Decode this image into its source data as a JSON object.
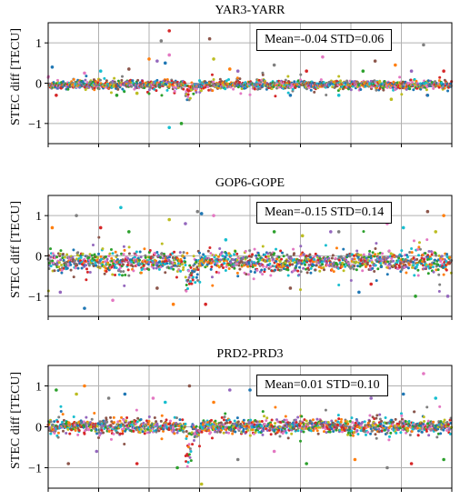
{
  "chart_data": [
    {
      "type": "scatter",
      "title": "YAR3-YARR",
      "ylabel": "STEC diff [TECU]",
      "xlabel": "",
      "ylim": [
        -1.5,
        1.5
      ],
      "yticks": [
        1,
        0,
        -1
      ],
      "grid": true,
      "stats": "Mean=-0.04 STD=0.06",
      "mean": -0.04,
      "std": 0.06,
      "stats_position": "top-right",
      "outliers": [
        {
          "x": 0.01,
          "y": 0.4
        },
        {
          "x": 0.02,
          "y": -0.3
        },
        {
          "x": 0.09,
          "y": 0.25
        },
        {
          "x": 0.13,
          "y": 0.3
        },
        {
          "x": 0.17,
          "y": -0.3
        },
        {
          "x": 0.2,
          "y": 0.35
        },
        {
          "x": 0.22,
          "y": -0.25
        },
        {
          "x": 0.25,
          "y": 0.6
        },
        {
          "x": 0.27,
          "y": 0.55
        },
        {
          "x": 0.28,
          "y": 1.05
        },
        {
          "x": 0.29,
          "y": 0.5
        },
        {
          "x": 0.3,
          "y": 1.3
        },
        {
          "x": 0.3,
          "y": 0.7
        },
        {
          "x": 0.3,
          "y": -1.1
        },
        {
          "x": 0.33,
          "y": -1.0
        },
        {
          "x": 0.4,
          "y": 1.1
        },
        {
          "x": 0.41,
          "y": 0.6
        },
        {
          "x": 0.45,
          "y": 0.35
        },
        {
          "x": 0.47,
          "y": 0.3
        },
        {
          "x": 0.56,
          "y": 0.45
        },
        {
          "x": 0.6,
          "y": -0.3
        },
        {
          "x": 0.64,
          "y": 0.3
        },
        {
          "x": 0.68,
          "y": 0.65
        },
        {
          "x": 0.72,
          "y": -0.3
        },
        {
          "x": 0.78,
          "y": 0.3
        },
        {
          "x": 0.81,
          "y": 0.55
        },
        {
          "x": 0.85,
          "y": -0.4
        },
        {
          "x": 0.86,
          "y": 0.45
        },
        {
          "x": 0.9,
          "y": 0.3
        },
        {
          "x": 0.93,
          "y": 0.95
        },
        {
          "x": 0.94,
          "y": -0.3
        },
        {
          "x": 0.98,
          "y": 0.3
        }
      ]
    },
    {
      "type": "scatter",
      "title": "GOP6-GOPE",
      "ylabel": "STEC diff [TECU]",
      "xlabel": "",
      "ylim": [
        -1.5,
        1.5
      ],
      "yticks": [
        1,
        0,
        -1
      ],
      "grid": true,
      "stats": "Mean=-0.15 STD=0.14",
      "mean": -0.15,
      "std": 0.14,
      "stats_position": "top-right",
      "outliers": [
        {
          "x": 0.01,
          "y": 0.7
        },
        {
          "x": 0.03,
          "y": -0.9
        },
        {
          "x": 0.07,
          "y": 1.0
        },
        {
          "x": 0.09,
          "y": -1.3
        },
        {
          "x": 0.13,
          "y": 0.7
        },
        {
          "x": 0.16,
          "y": -1.1
        },
        {
          "x": 0.18,
          "y": 1.2
        },
        {
          "x": 0.2,
          "y": 0.6
        },
        {
          "x": 0.27,
          "y": -0.8
        },
        {
          "x": 0.3,
          "y": 0.9
        },
        {
          "x": 0.31,
          "y": -1.2
        },
        {
          "x": 0.34,
          "y": 0.8
        },
        {
          "x": 0.37,
          "y": 1.1
        },
        {
          "x": 0.38,
          "y": 1.05
        },
        {
          "x": 0.39,
          "y": -1.2
        },
        {
          "x": 0.41,
          "y": 1.0
        },
        {
          "x": 0.44,
          "y": 0.4
        },
        {
          "x": 0.56,
          "y": 0.6
        },
        {
          "x": 0.6,
          "y": -0.8
        },
        {
          "x": 0.63,
          "y": 0.5
        },
        {
          "x": 0.66,
          "y": 0.9
        },
        {
          "x": 0.7,
          "y": 0.6
        },
        {
          "x": 0.72,
          "y": 0.6
        },
        {
          "x": 0.77,
          "y": -0.9
        },
        {
          "x": 0.8,
          "y": -0.7
        },
        {
          "x": 0.84,
          "y": 0.8
        },
        {
          "x": 0.88,
          "y": 0.7
        },
        {
          "x": 0.91,
          "y": -1.0
        },
        {
          "x": 0.94,
          "y": 1.1
        },
        {
          "x": 0.96,
          "y": 0.6
        },
        {
          "x": 0.98,
          "y": 1.0
        },
        {
          "x": 0.99,
          "y": -1.0
        }
      ]
    },
    {
      "type": "scatter",
      "title": "PRD2-PRD3",
      "ylabel": "STEC diff [TECU]",
      "xlabel": "",
      "ylim": [
        -1.5,
        1.5
      ],
      "yticks": [
        1,
        0,
        -1
      ],
      "grid": true,
      "stats": "Mean=0.01 STD=0.10",
      "mean": 0.01,
      "std": 0.1,
      "stats_position": "top-right",
      "outliers": [
        {
          "x": 0.02,
          "y": 0.9
        },
        {
          "x": 0.05,
          "y": -0.9
        },
        {
          "x": 0.07,
          "y": 0.8
        },
        {
          "x": 0.09,
          "y": 1.0
        },
        {
          "x": 0.12,
          "y": -0.6
        },
        {
          "x": 0.15,
          "y": 0.7
        },
        {
          "x": 0.19,
          "y": 0.8
        },
        {
          "x": 0.22,
          "y": -0.9
        },
        {
          "x": 0.26,
          "y": 0.7
        },
        {
          "x": 0.29,
          "y": 0.6
        },
        {
          "x": 0.32,
          "y": -1.0
        },
        {
          "x": 0.35,
          "y": 1.0
        },
        {
          "x": 0.38,
          "y": -1.4
        },
        {
          "x": 0.41,
          "y": 0.6
        },
        {
          "x": 0.45,
          "y": 0.9
        },
        {
          "x": 0.47,
          "y": -0.8
        },
        {
          "x": 0.5,
          "y": 0.9
        },
        {
          "x": 0.53,
          "y": 0.8
        },
        {
          "x": 0.56,
          "y": -0.6
        },
        {
          "x": 0.6,
          "y": 0.9
        },
        {
          "x": 0.64,
          "y": -0.9
        },
        {
          "x": 0.68,
          "y": 0.8
        },
        {
          "x": 0.72,
          "y": 0.9
        },
        {
          "x": 0.76,
          "y": -0.8
        },
        {
          "x": 0.8,
          "y": 0.7
        },
        {
          "x": 0.84,
          "y": -1.0
        },
        {
          "x": 0.88,
          "y": 0.8
        },
        {
          "x": 0.9,
          "y": -0.9
        },
        {
          "x": 0.93,
          "y": 1.3
        },
        {
          "x": 0.96,
          "y": 0.7
        },
        {
          "x": 0.98,
          "y": -0.8
        }
      ]
    }
  ],
  "colors": {
    "series_palette": [
      "#1f77b4",
      "#ff7f0e",
      "#2ca02c",
      "#d62728",
      "#9467bd",
      "#8c564b",
      "#e377c2",
      "#7f7f7f",
      "#bcbd22",
      "#17becf"
    ],
    "grid": "#b0b0b0",
    "axis": "#000000"
  }
}
